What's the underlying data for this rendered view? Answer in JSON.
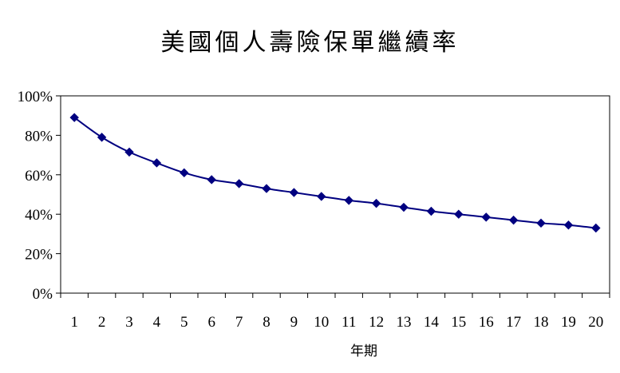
{
  "chart_data": {
    "type": "line",
    "title": "美國個人壽險保單繼續率",
    "xlabel": "年期",
    "ylabel": "",
    "x": [
      1,
      2,
      3,
      4,
      5,
      6,
      7,
      8,
      9,
      10,
      11,
      12,
      13,
      14,
      15,
      16,
      17,
      18,
      19,
      20
    ],
    "x_tick_labels": [
      "1",
      "2",
      "3",
      "4",
      "5",
      "6",
      "7",
      "8",
      "9",
      "10",
      "11",
      "12",
      "13",
      "14",
      "15",
      "16",
      "17",
      "18",
      "19",
      "20"
    ],
    "ylim": [
      0,
      100
    ],
    "y_ticks": [
      0,
      20,
      40,
      60,
      80,
      100
    ],
    "y_tick_labels": [
      "0%",
      "20%",
      "40%",
      "60%",
      "80%",
      "100%"
    ],
    "grid": false,
    "legend": "none",
    "series": [
      {
        "color": "#000080",
        "marker": "diamond",
        "values": [
          89,
          79,
          71.5,
          66,
          61,
          57.5,
          55.5,
          53,
          51,
          49,
          47,
          45.5,
          43.5,
          41.5,
          40,
          38.5,
          37,
          35.5,
          34.5,
          33
        ]
      }
    ]
  }
}
